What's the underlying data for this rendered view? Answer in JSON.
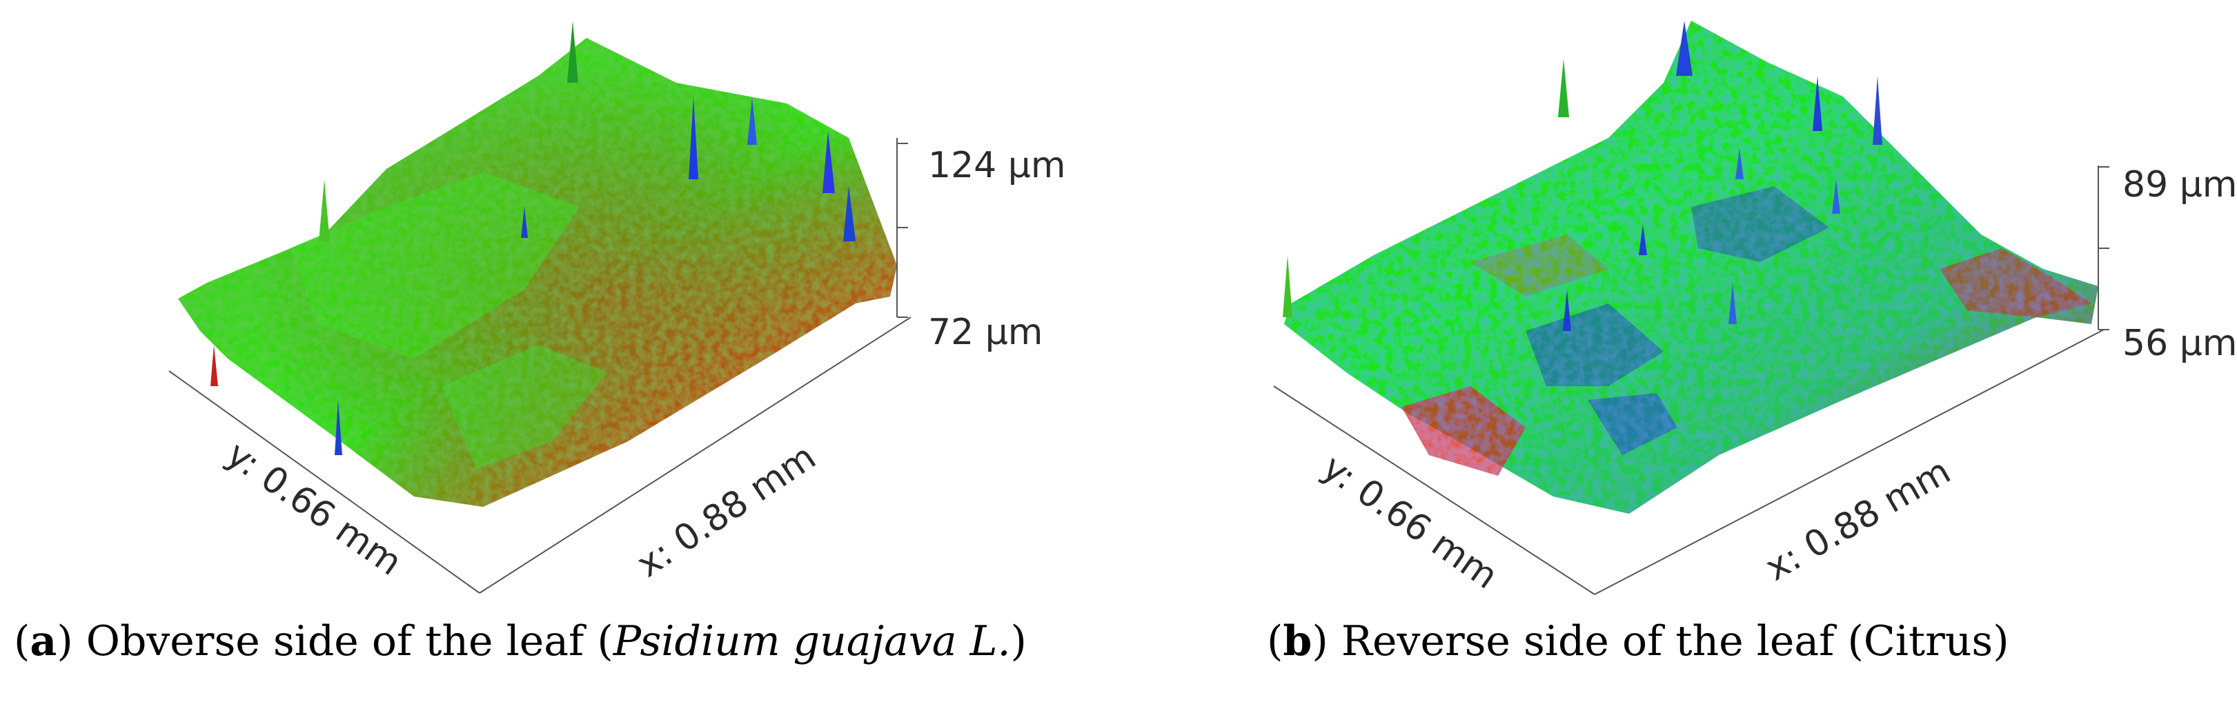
{
  "figure": {
    "panels": [
      {
        "id": "a",
        "scale_top": "124 μm",
        "scale_bottom": "72 μm",
        "y_axis_label": "y: 0.66 mm",
        "x_axis_label": "x: 0.88 mm",
        "caption_open": "(",
        "caption_tag": "a",
        "caption_close": ")",
        "caption_text": " Obverse side of the leaf (",
        "caption_species": "Psidium guajava L.",
        "caption_end": ")"
      },
      {
        "id": "b",
        "scale_top": "89 μm",
        "scale_bottom": "56 μm",
        "y_axis_label": "y: 0.66 mm",
        "x_axis_label": "x: 0.88 mm",
        "caption_open": "(",
        "caption_tag": "b",
        "caption_close": ")",
        "caption_text": " Reverse side of the leaf (Citrus)"
      }
    ]
  }
}
